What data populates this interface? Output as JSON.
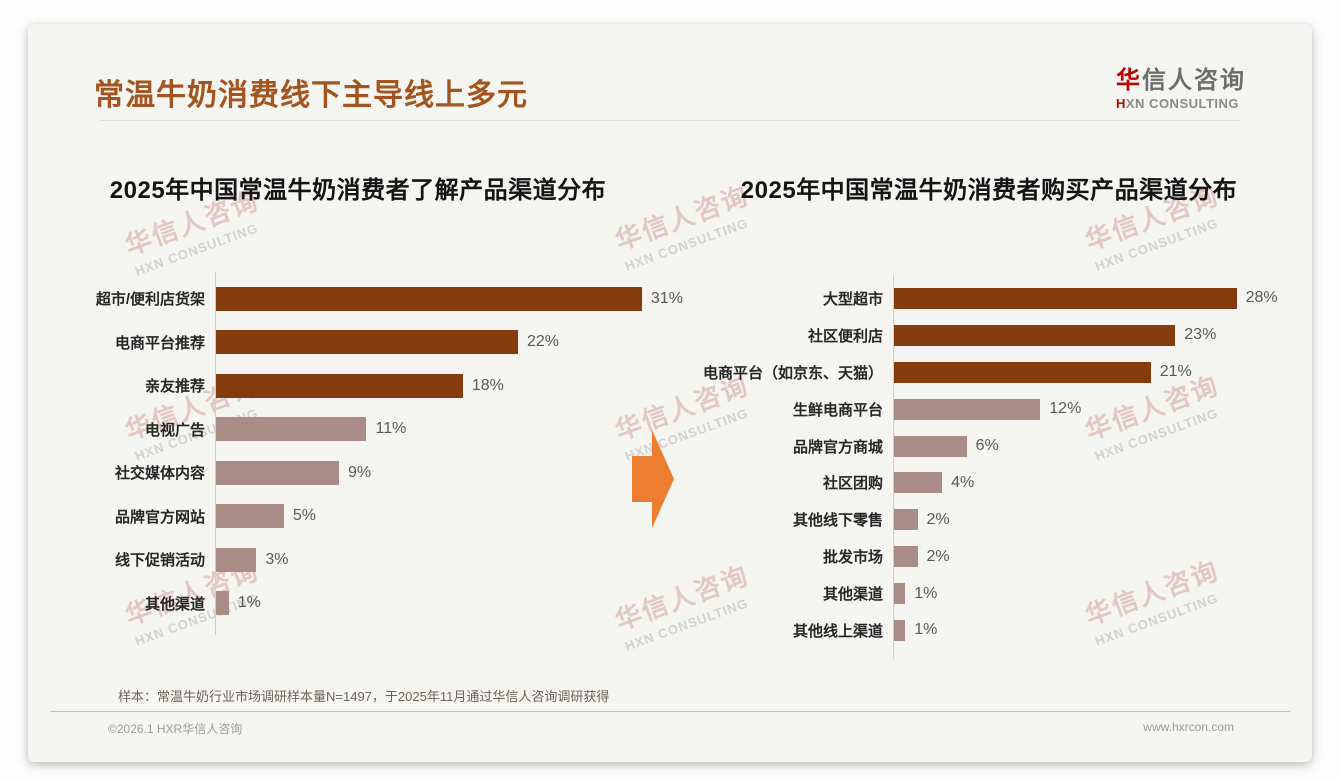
{
  "header": {
    "title": "常温牛奶消费线下主导线上多元"
  },
  "logo": {
    "cn_accent": "华",
    "cn_rest": "信人咨询",
    "en_accent": "H",
    "en_rest": "XN CONSULTING"
  },
  "watermark": {
    "cn": "华信人咨询",
    "en": "HXN CONSULTING"
  },
  "colors": {
    "title_accent": "#a4551f",
    "bar_dark": "#843c0f",
    "bar_light": "#a98c85",
    "arrow": "#ed7d31",
    "logo_red": "#c00000",
    "value_text": "#595959"
  },
  "chart_data": [
    {
      "type": "bar",
      "orientation": "horizontal",
      "title": "2025年中国常温牛奶消费者了解产品渠道分布",
      "categories": [
        "超市/便利店货架",
        "电商平台推荐",
        "亲友推荐",
        "电视广告",
        "社交媒体内容",
        "品牌官方网站",
        "线下促销活动",
        "其他渠道"
      ],
      "values": [
        31,
        22,
        18,
        11,
        9,
        5,
        3,
        1
      ],
      "value_labels": [
        "31%",
        "22%",
        "18%",
        "11%",
        "9%",
        "5%",
        "3%",
        "1%"
      ],
      "unit": "%",
      "dark_count": 3,
      "xmax": 35,
      "grid": false,
      "legend": "none"
    },
    {
      "type": "bar",
      "orientation": "horizontal",
      "title": "2025年中国常温牛奶消费者购买产品渠道分布",
      "categories": [
        "大型超市",
        "社区便利店",
        "电商平台（如京东、天猫）",
        "生鲜电商平台",
        "品牌官方商城",
        "社区团购",
        "其他线下零售",
        "批发市场",
        "其他渠道",
        "其他线上渠道"
      ],
      "values": [
        28,
        23,
        21,
        12,
        6,
        4,
        2,
        2,
        1,
        1
      ],
      "value_labels": [
        "28%",
        "23%",
        "21%",
        "12%",
        "6%",
        "4%",
        "2%",
        "2%",
        "1%",
        "1%"
      ],
      "unit": "%",
      "dark_count": 3,
      "xmax": 33,
      "grid": false,
      "legend": "none"
    }
  ],
  "footer": {
    "sample_note": "样本：常温牛奶行业市场调研样本量N=1497，于2025年11月通过华信人咨询调研获得",
    "copyright": "©2026.1 HXR华信人咨询",
    "website": "www.hxrcon.com"
  }
}
